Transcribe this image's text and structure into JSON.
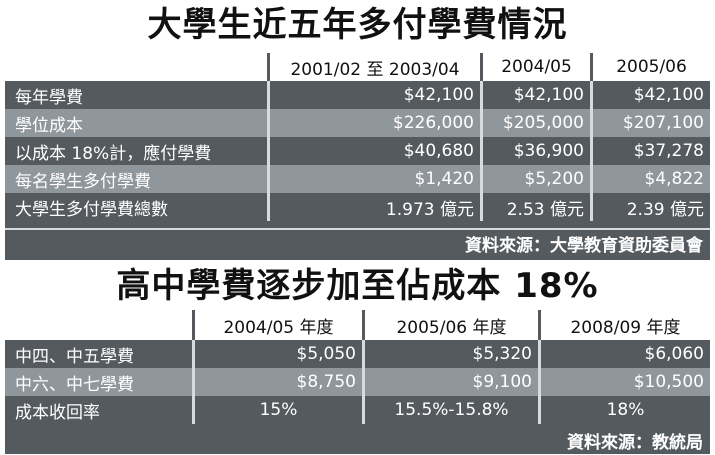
{
  "table1": {
    "title": "大學生近五年多付學費情況",
    "headers": [
      "",
      "2001/02 至 2003/04",
      "2004/05",
      "2005/06"
    ],
    "rows": [
      {
        "label": "每年學費",
        "values": [
          "$42,100",
          "$42,100",
          "$42,100"
        ]
      },
      {
        "label": "學位成本",
        "values": [
          "$226,000",
          "$205,000",
          "$207,100"
        ]
      },
      {
        "label": "以成本 18%計，應付學費",
        "values": [
          "$40,680",
          "$36,900",
          "$37,278"
        ]
      },
      {
        "label": "每名學生多付學費",
        "values": [
          "$1,420",
          "$5,200",
          "$4,822"
        ]
      },
      {
        "label": "大學生多付學費總數",
        "values": [
          "1.973 億元",
          "2.53 億元",
          "2.39 億元"
        ]
      }
    ],
    "source": "資料來源：大學教育資助委員會"
  },
  "table2": {
    "title": "高中學費逐步加至佔成本 18%",
    "headers": [
      "",
      "2004/05 年度",
      "2005/06 年度",
      "2008/09 年度"
    ],
    "rows": [
      {
        "label": "中四、中五學費",
        "values": [
          "$5,050",
          "$5,320",
          "$6,060"
        ]
      },
      {
        "label": "中六、中七學費",
        "values": [
          "$8,750",
          "$9,100",
          "$10,500"
        ]
      },
      {
        "label": "成本收回率",
        "values": [
          "15%",
          "15.5%-15.8%",
          "18%"
        ]
      }
    ],
    "source": "資料來源：教統局"
  },
  "colors": {
    "panel": "#555a5f",
    "stripe": "#8f969c",
    "divider": "#d8dbde"
  }
}
